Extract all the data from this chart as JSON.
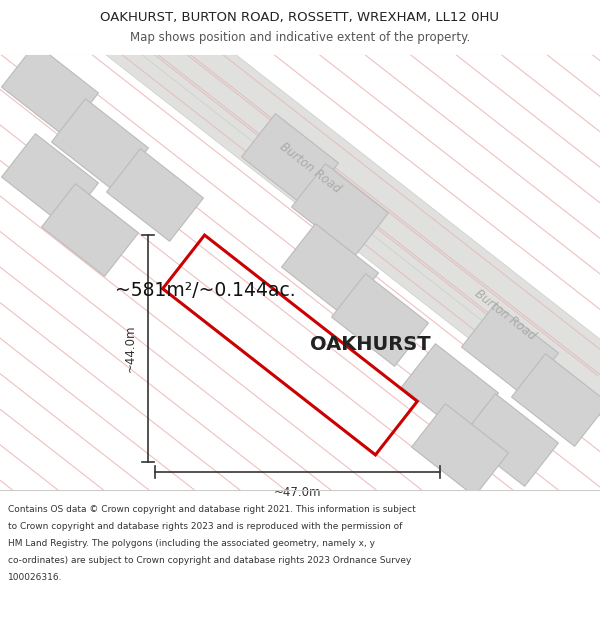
{
  "title_line1": "OAKHURST, BURTON ROAD, ROSSETT, WREXHAM, LL12 0HU",
  "title_line2": "Map shows position and indicative extent of the property.",
  "area_text": "~581m²/~0.144ac.",
  "property_label": "OAKHURST",
  "dim_width": "~47.0m",
  "dim_height": "~44.0m",
  "road_label": "Burton Road",
  "footer_lines": [
    "Contains OS data © Crown copyright and database right 2021. This information is subject",
    "to Crown copyright and database rights 2023 and is reproduced with the permission of",
    "HM Land Registry. The polygons (including the associated geometry, namely x, y",
    "co-ordinates) are subject to Crown copyright and database rights 2023 Ordnance Survey",
    "100026316."
  ],
  "bg_color": "#f8f8f5",
  "road_fill": "#e0e0de",
  "road_edge": "#cccccc",
  "road_stripe_color": "#e8c8c8",
  "plot_color": "#cc0000",
  "neighbor_fill": "#d2d2d2",
  "neighbor_edge": "#bbbbbb",
  "title_color": "#222222",
  "footer_color": "#333333",
  "dim_color": "#333333"
}
